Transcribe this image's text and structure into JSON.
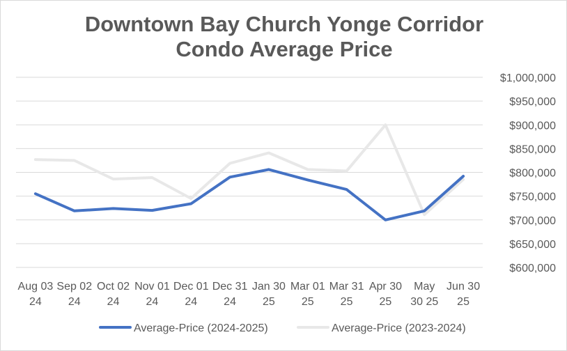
{
  "chart_data": {
    "type": "line",
    "title": [
      "Downtown Bay Church Yonge Corridor",
      "Condo Average Price"
    ],
    "categories": [
      [
        "Aug 03",
        "24"
      ],
      [
        "Sep 02",
        "24"
      ],
      [
        "Oct 02",
        "24"
      ],
      [
        "Nov 01",
        "24"
      ],
      [
        "Dec 01",
        "24"
      ],
      [
        "Dec 31",
        "24"
      ],
      [
        "Jan 30",
        "25"
      ],
      [
        "Mar 01",
        "25"
      ],
      [
        "Mar 31",
        "25"
      ],
      [
        "Apr 30",
        "25"
      ],
      [
        "May",
        "30 25"
      ],
      [
        "Jun 30",
        "25"
      ]
    ],
    "series": [
      {
        "name": "Average-Price (2024-2025)",
        "color": "#4472c4",
        "values": [
          755000,
          719000,
          724000,
          720000,
          734000,
          790000,
          806000,
          784000,
          764000,
          700000,
          719000,
          792000
        ]
      },
      {
        "name": "Average-Price (2023-2024)",
        "color": "#e8e8e8",
        "values": [
          827000,
          825000,
          786000,
          789000,
          745000,
          819000,
          841000,
          806000,
          803000,
          900000,
          711000,
          785000
        ]
      }
    ],
    "y_ticks": [
      {
        "value": 1000000,
        "label": "$1,000,000"
      },
      {
        "value": 950000,
        "label": "$950,000"
      },
      {
        "value": 900000,
        "label": "$900,000"
      },
      {
        "value": 850000,
        "label": "$850,000"
      },
      {
        "value": 800000,
        "label": "$800,000"
      },
      {
        "value": 750000,
        "label": "$750,000"
      },
      {
        "value": 700000,
        "label": "$700,000"
      },
      {
        "value": 650000,
        "label": "$650,000"
      },
      {
        "value": 600000,
        "label": "$600,000"
      }
    ],
    "ylim": [
      600000,
      1000000
    ],
    "y_axis_side": "right",
    "grid": true,
    "legend_position": "bottom",
    "gridline_color": "#d9d9d9"
  }
}
